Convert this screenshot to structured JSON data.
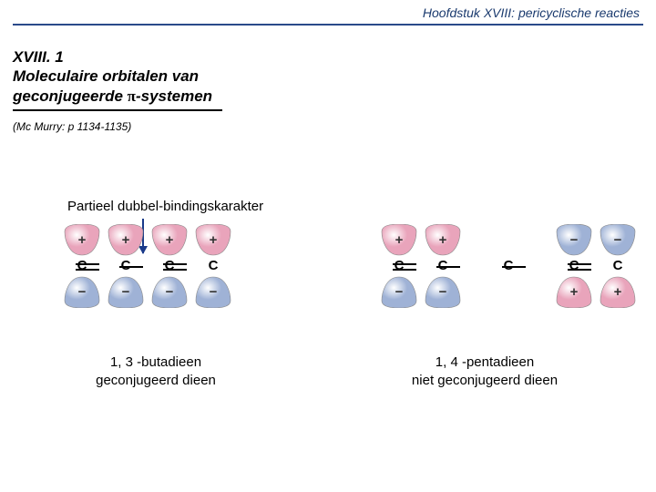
{
  "header": "Hoofdstuk XVIII: pericyclische reacties",
  "title": {
    "line1": "XVIII. 1",
    "line2": "Moleculaire orbitalen van",
    "line3_pre": "geconjugeerde ",
    "line3_pi": "π",
    "line3_post": "-systemen"
  },
  "reference": "(Mc Murry: p 1134-1135)",
  "body_label": "Partieel dubbel-bindingskarakter",
  "left": {
    "orbitals": [
      {
        "top_sign": "+",
        "bot_sign": "−",
        "top_color": "#e9a4bb",
        "bot_color": "#9fb2d6",
        "atom": "C",
        "bond_after": "double"
      },
      {
        "top_sign": "+",
        "bot_sign": "−",
        "top_color": "#e9a4bb",
        "bot_color": "#9fb2d6",
        "atom": "C",
        "bond_after": "single"
      },
      {
        "top_sign": "+",
        "bot_sign": "−",
        "top_color": "#e9a4bb",
        "bot_color": "#9fb2d6",
        "atom": "C",
        "bond_after": "double"
      },
      {
        "top_sign": "+",
        "bot_sign": "−",
        "top_color": "#e9a4bb",
        "bot_color": "#9fb2d6",
        "atom": "C",
        "bond_after": null
      }
    ],
    "caption_l1": "1, 3 -butadieen",
    "caption_l2": "geconjugeerd dieen"
  },
  "right": {
    "orbitals": [
      {
        "top_sign": "+",
        "bot_sign": "−",
        "top_color": "#e9a4bb",
        "bot_color": "#9fb2d6",
        "atom": "C",
        "bond_after": "double"
      },
      {
        "top_sign": "+",
        "bot_sign": "−",
        "top_color": "#e9a4bb",
        "bot_color": "#9fb2d6",
        "atom": "C",
        "bond_after": "single_gap"
      },
      {
        "top_sign": null,
        "bot_sign": null,
        "top_color": null,
        "bot_color": null,
        "atom": "C",
        "bond_after": "single_gap",
        "bare": true
      },
      {
        "top_sign": "−",
        "bot_sign": "+",
        "top_color": "#9fb2d6",
        "bot_color": "#e9a4bb",
        "atom": "C",
        "bond_after": "double"
      },
      {
        "top_sign": "−",
        "bot_sign": "+",
        "top_color": "#9fb2d6",
        "bot_color": "#e9a4bb",
        "atom": "C",
        "bond_after": null
      }
    ],
    "caption_l1": "1, 4 -pentadieen",
    "caption_l2": "niet geconjugeerd dieen"
  },
  "style": {
    "lobe_stroke": "#888",
    "lobe_highlight": "#ffffff"
  }
}
